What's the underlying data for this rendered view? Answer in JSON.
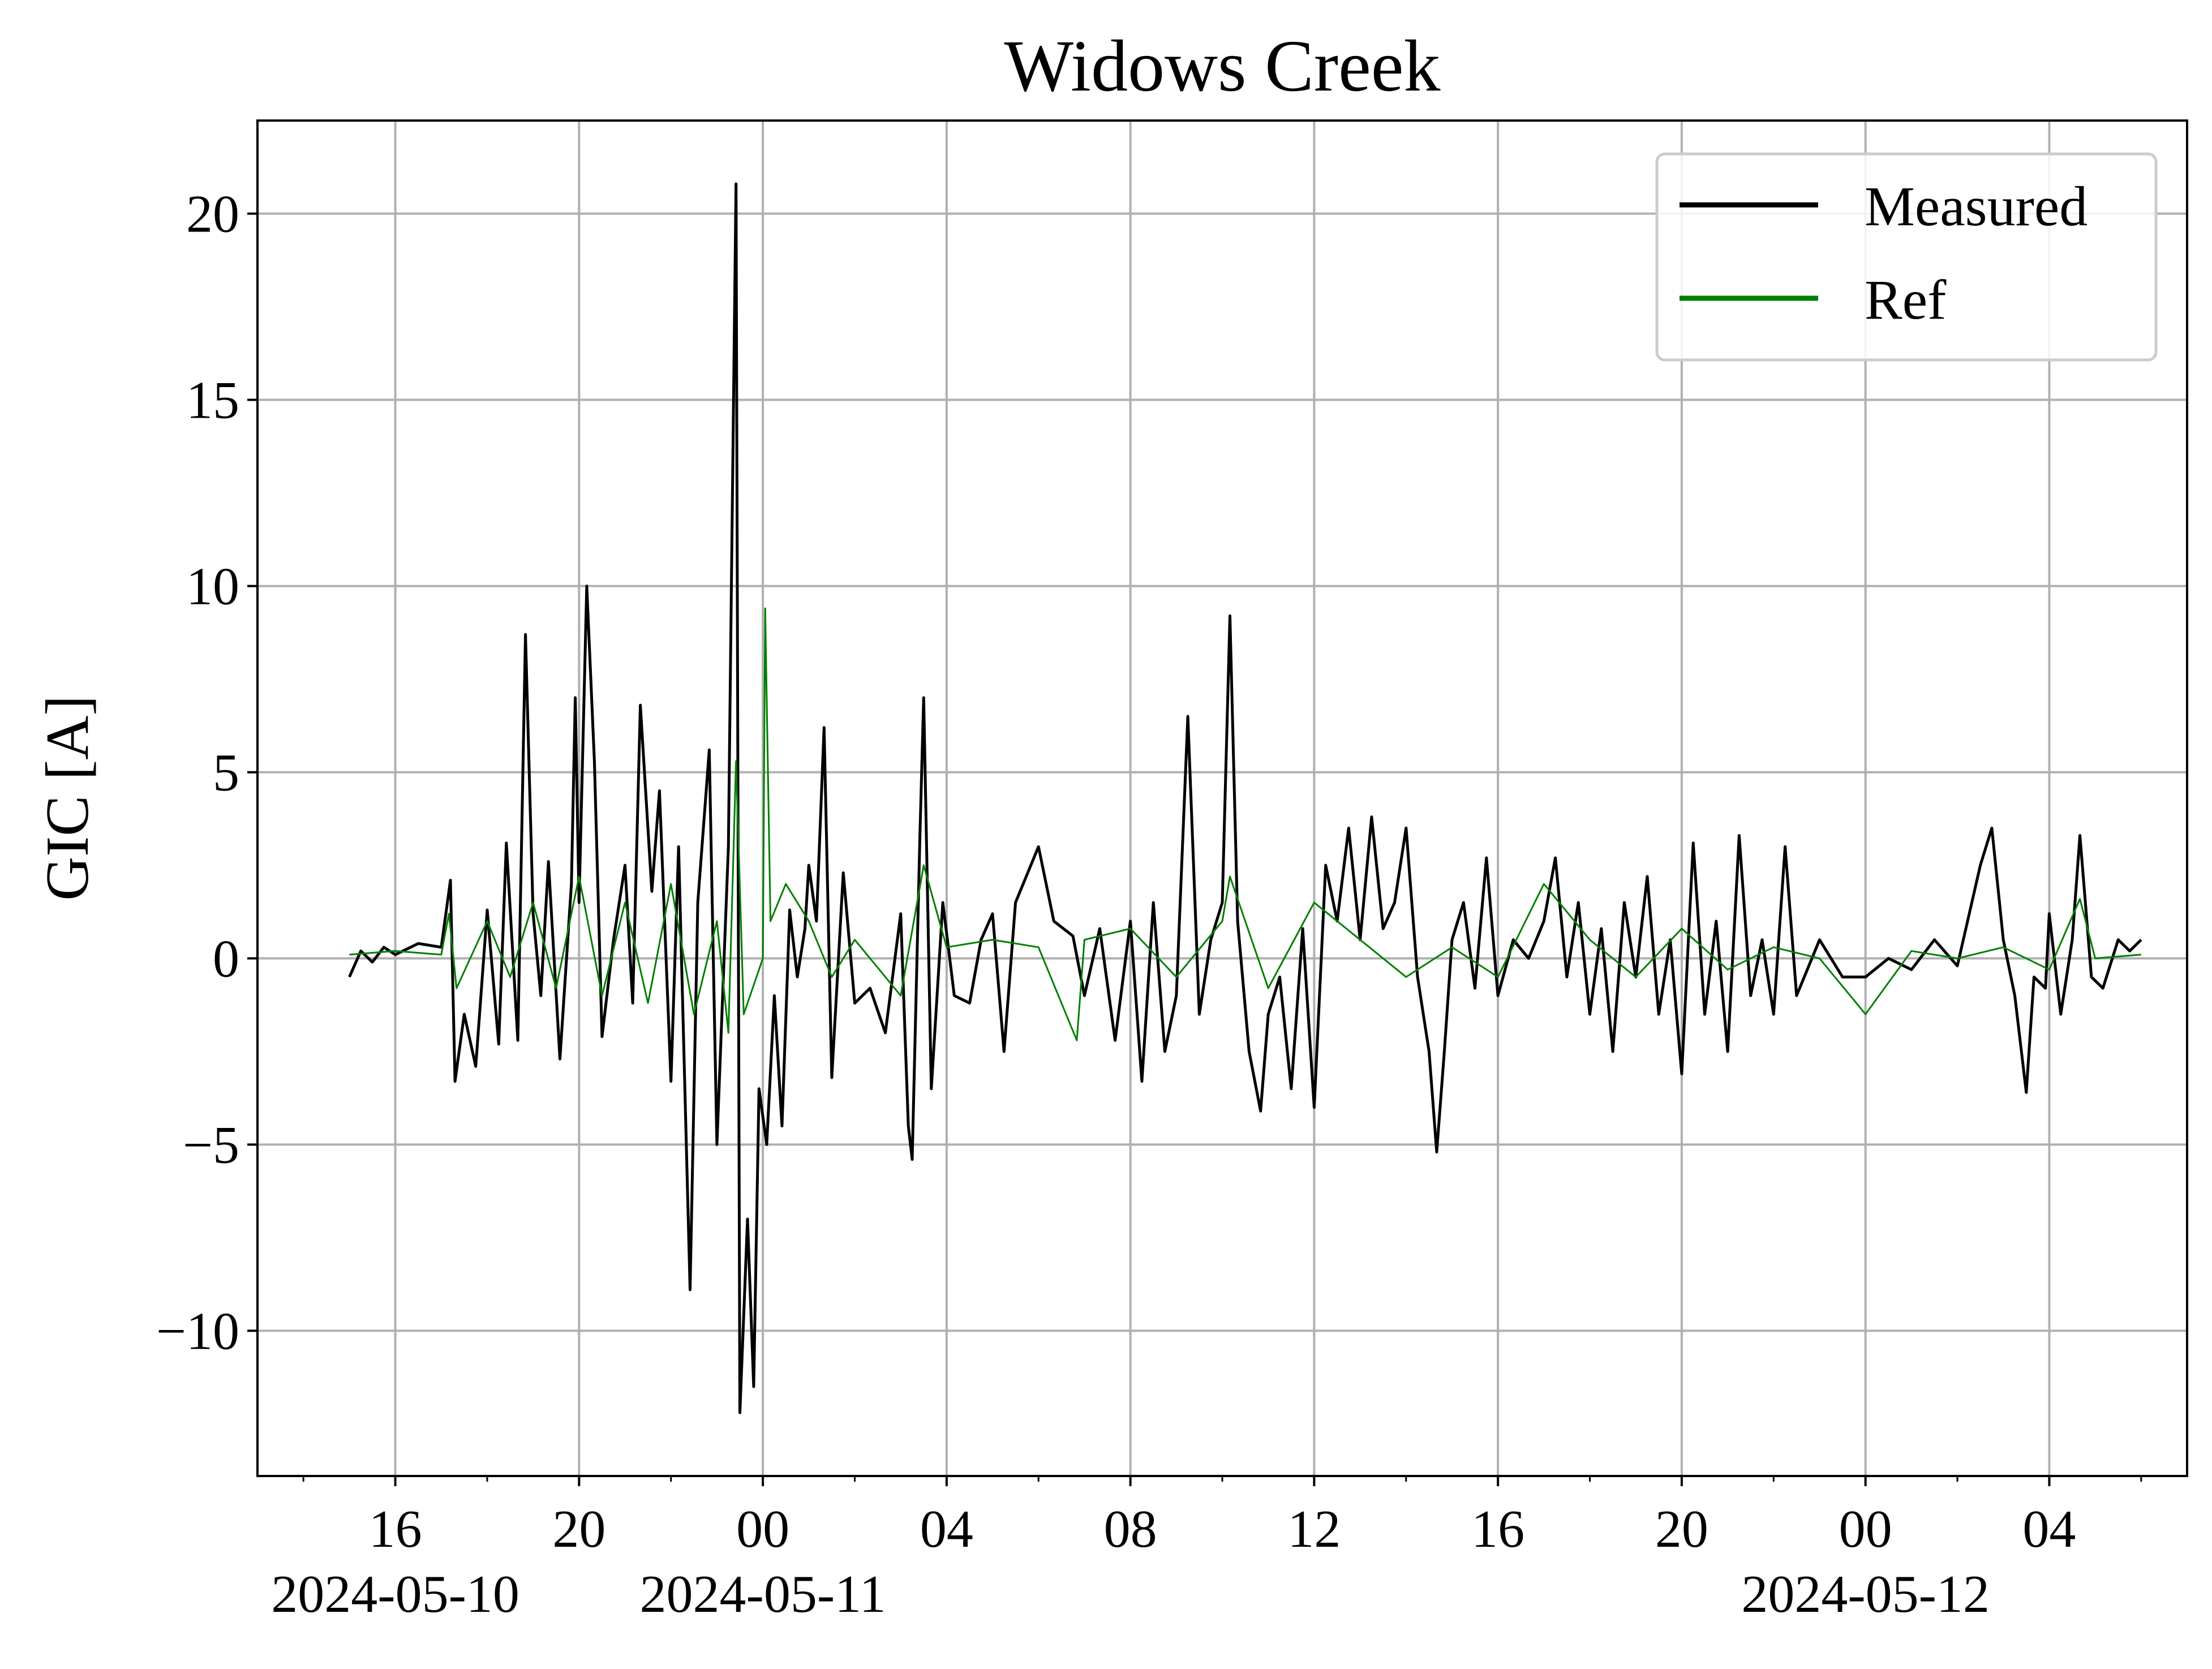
{
  "chart_data": {
    "type": "line",
    "title": "Widows Creek",
    "xlabel": "",
    "ylabel": "GIC [A]",
    "x_start": "2024-05-10 13:00",
    "x_end": "2024-05-12 07:00",
    "xlim": [
      "2024-05-10 13:00",
      "2024-05-12 07:00"
    ],
    "ylim": [
      -13.9,
      22.5
    ],
    "y_ticks": [
      {
        "value": -10,
        "label": "−10"
      },
      {
        "value": -5,
        "label": "−5"
      },
      {
        "value": 0,
        "label": "0"
      },
      {
        "value": 5,
        "label": "5"
      },
      {
        "value": 10,
        "label": "10"
      },
      {
        "value": 15,
        "label": "15"
      },
      {
        "value": 20,
        "label": "20"
      }
    ],
    "x_ticks": [
      {
        "time": "2024-05-10 16:00",
        "label": "16",
        "date_label": "2024-05-10"
      },
      {
        "time": "2024-05-10 20:00",
        "label": "20",
        "date_label": ""
      },
      {
        "time": "2024-05-11 00:00",
        "label": "00",
        "date_label": "2024-05-11"
      },
      {
        "time": "2024-05-11 04:00",
        "label": "04",
        "date_label": ""
      },
      {
        "time": "2024-05-11 08:00",
        "label": "08",
        "date_label": ""
      },
      {
        "time": "2024-05-11 12:00",
        "label": "12",
        "date_label": ""
      },
      {
        "time": "2024-05-11 16:00",
        "label": "16",
        "date_label": ""
      },
      {
        "time": "2024-05-11 20:00",
        "label": "20",
        "date_label": ""
      },
      {
        "time": "2024-05-12 00:00",
        "label": "00",
        "date_label": "2024-05-12"
      },
      {
        "time": "2024-05-12 04:00",
        "label": "04",
        "date_label": ""
      }
    ],
    "minor_tick_interval_hours": 2,
    "grid": true,
    "legend_position": "top-right",
    "series": [
      {
        "name": "Measured",
        "color": "#000000",
        "points": [
          [
            "2024-05-10 15:00",
            -0.5
          ],
          [
            "2024-05-10 15:15",
            0.2
          ],
          [
            "2024-05-10 15:30",
            -0.1
          ],
          [
            "2024-05-10 15:45",
            0.3
          ],
          [
            "2024-05-10 16:00",
            0.1
          ],
          [
            "2024-05-10 16:30",
            0.4
          ],
          [
            "2024-05-10 17:00",
            0.3
          ],
          [
            "2024-05-10 17:12",
            2.1
          ],
          [
            "2024-05-10 17:18",
            -3.3
          ],
          [
            "2024-05-10 17:30",
            -1.5
          ],
          [
            "2024-05-10 17:45",
            -2.9
          ],
          [
            "2024-05-10 18:00",
            1.3
          ],
          [
            "2024-05-10 18:15",
            -2.3
          ],
          [
            "2024-05-10 18:25",
            3.1
          ],
          [
            "2024-05-10 18:40",
            -2.2
          ],
          [
            "2024-05-10 18:50",
            8.7
          ],
          [
            "2024-05-10 19:00",
            1.2
          ],
          [
            "2024-05-10 19:10",
            -1.0
          ],
          [
            "2024-05-10 19:20",
            2.6
          ],
          [
            "2024-05-10 19:35",
            -2.7
          ],
          [
            "2024-05-10 19:50",
            2.0
          ],
          [
            "2024-05-10 19:55",
            7.0
          ],
          [
            "2024-05-10 20:00",
            1.5
          ],
          [
            "2024-05-10 20:10",
            10.0
          ],
          [
            "2024-05-10 20:20",
            5.3
          ],
          [
            "2024-05-10 20:30",
            -2.1
          ],
          [
            "2024-05-10 20:45",
            0.5
          ],
          [
            "2024-05-10 21:00",
            2.5
          ],
          [
            "2024-05-10 21:10",
            -1.2
          ],
          [
            "2024-05-10 21:20",
            6.8
          ],
          [
            "2024-05-10 21:35",
            1.8
          ],
          [
            "2024-05-10 21:45",
            4.5
          ],
          [
            "2024-05-10 22:00",
            -3.3
          ],
          [
            "2024-05-10 22:10",
            3.0
          ],
          [
            "2024-05-10 22:25",
            -8.9
          ],
          [
            "2024-05-10 22:35",
            1.5
          ],
          [
            "2024-05-10 22:50",
            5.6
          ],
          [
            "2024-05-10 23:00",
            -5.0
          ],
          [
            "2024-05-10 23:15",
            3.0
          ],
          [
            "2024-05-10 23:25",
            20.8
          ],
          [
            "2024-05-10 23:30",
            -12.2
          ],
          [
            "2024-05-10 23:40",
            -7.0
          ],
          [
            "2024-05-10 23:48",
            -11.5
          ],
          [
            "2024-05-10 23:55",
            -3.5
          ],
          [
            "2024-05-11 00:05",
            -5.0
          ],
          [
            "2024-05-11 00:15",
            -1.0
          ],
          [
            "2024-05-11 00:25",
            -4.5
          ],
          [
            "2024-05-11 00:35",
            1.3
          ],
          [
            "2024-05-11 00:45",
            -0.5
          ],
          [
            "2024-05-11 00:55",
            0.8
          ],
          [
            "2024-05-11 01:00",
            2.5
          ],
          [
            "2024-05-11 01:10",
            1.0
          ],
          [
            "2024-05-11 01:20",
            6.2
          ],
          [
            "2024-05-11 01:30",
            -3.2
          ],
          [
            "2024-05-11 01:45",
            2.3
          ],
          [
            "2024-05-11 02:00",
            -1.2
          ],
          [
            "2024-05-11 02:20",
            -0.8
          ],
          [
            "2024-05-11 02:40",
            -2.0
          ],
          [
            "2024-05-11 03:00",
            1.2
          ],
          [
            "2024-05-11 03:10",
            -4.5
          ],
          [
            "2024-05-11 03:15",
            -5.4
          ],
          [
            "2024-05-11 03:25",
            3.2
          ],
          [
            "2024-05-11 03:30",
            7.0
          ],
          [
            "2024-05-11 03:40",
            -3.5
          ],
          [
            "2024-05-11 03:55",
            1.5
          ],
          [
            "2024-05-11 04:10",
            -1.0
          ],
          [
            "2024-05-11 04:30",
            -1.2
          ],
          [
            "2024-05-11 04:45",
            0.5
          ],
          [
            "2024-05-11 05:00",
            1.2
          ],
          [
            "2024-05-11 05:15",
            -2.5
          ],
          [
            "2024-05-11 05:30",
            1.5
          ],
          [
            "2024-05-11 06:00",
            3.0
          ],
          [
            "2024-05-11 06:20",
            1.0
          ],
          [
            "2024-05-11 06:45",
            0.6
          ],
          [
            "2024-05-11 07:00",
            -1.0
          ],
          [
            "2024-05-11 07:20",
            0.8
          ],
          [
            "2024-05-11 07:40",
            -2.2
          ],
          [
            "2024-05-11 08:00",
            1.0
          ],
          [
            "2024-05-11 08:15",
            -3.3
          ],
          [
            "2024-05-11 08:30",
            1.5
          ],
          [
            "2024-05-11 08:45",
            -2.5
          ],
          [
            "2024-05-11 09:00",
            -1.0
          ],
          [
            "2024-05-11 09:15",
            6.5
          ],
          [
            "2024-05-11 09:30",
            -1.5
          ],
          [
            "2024-05-11 09:45",
            0.5
          ],
          [
            "2024-05-11 10:00",
            1.5
          ],
          [
            "2024-05-11 10:10",
            9.2
          ],
          [
            "2024-05-11 10:20",
            1.0
          ],
          [
            "2024-05-11 10:35",
            -2.5
          ],
          [
            "2024-05-11 10:50",
            -4.1
          ],
          [
            "2024-05-11 11:00",
            -1.5
          ],
          [
            "2024-05-11 11:15",
            -0.5
          ],
          [
            "2024-05-11 11:30",
            -3.5
          ],
          [
            "2024-05-11 11:45",
            0.8
          ],
          [
            "2024-05-11 12:00",
            -4.0
          ],
          [
            "2024-05-11 12:15",
            2.5
          ],
          [
            "2024-05-11 12:30",
            1.0
          ],
          [
            "2024-05-11 12:45",
            3.5
          ],
          [
            "2024-05-11 13:00",
            0.5
          ],
          [
            "2024-05-11 13:15",
            3.8
          ],
          [
            "2024-05-11 13:30",
            0.8
          ],
          [
            "2024-05-11 13:45",
            1.5
          ],
          [
            "2024-05-11 14:00",
            3.5
          ],
          [
            "2024-05-11 14:15",
            -0.5
          ],
          [
            "2024-05-11 14:30",
            -2.5
          ],
          [
            "2024-05-11 14:40",
            -5.2
          ],
          [
            "2024-05-11 14:50",
            -2.5
          ],
          [
            "2024-05-11 15:00",
            0.5
          ],
          [
            "2024-05-11 15:15",
            1.5
          ],
          [
            "2024-05-11 15:30",
            -0.8
          ],
          [
            "2024-05-11 15:45",
            2.7
          ],
          [
            "2024-05-11 16:00",
            -1.0
          ],
          [
            "2024-05-11 16:20",
            0.5
          ],
          [
            "2024-05-11 16:40",
            0.0
          ],
          [
            "2024-05-11 17:00",
            1.0
          ],
          [
            "2024-05-11 17:15",
            2.7
          ],
          [
            "2024-05-11 17:30",
            -0.5
          ],
          [
            "2024-05-11 17:45",
            1.5
          ],
          [
            "2024-05-11 18:00",
            -1.5
          ],
          [
            "2024-05-11 18:15",
            0.8
          ],
          [
            "2024-05-11 18:30",
            -2.5
          ],
          [
            "2024-05-11 18:45",
            1.5
          ],
          [
            "2024-05-11 19:00",
            -0.5
          ],
          [
            "2024-05-11 19:15",
            2.2
          ],
          [
            "2024-05-11 19:30",
            -1.5
          ],
          [
            "2024-05-11 19:45",
            0.5
          ],
          [
            "2024-05-11 20:00",
            -3.1
          ],
          [
            "2024-05-11 20:15",
            3.1
          ],
          [
            "2024-05-11 20:30",
            -1.5
          ],
          [
            "2024-05-11 20:45",
            1.0
          ],
          [
            "2024-05-11 21:00",
            -2.5
          ],
          [
            "2024-05-11 21:15",
            3.3
          ],
          [
            "2024-05-11 21:30",
            -1.0
          ],
          [
            "2024-05-11 21:45",
            0.5
          ],
          [
            "2024-05-11 22:00",
            -1.5
          ],
          [
            "2024-05-11 22:15",
            3.0
          ],
          [
            "2024-05-11 22:30",
            -1.0
          ],
          [
            "2024-05-11 23:00",
            0.5
          ],
          [
            "2024-05-11 23:30",
            -0.5
          ],
          [
            "2024-05-12 00:00",
            -0.5
          ],
          [
            "2024-05-12 00:30",
            0.0
          ],
          [
            "2024-05-12 01:00",
            -0.3
          ],
          [
            "2024-05-12 01:30",
            0.5
          ],
          [
            "2024-05-12 02:00",
            -0.2
          ],
          [
            "2024-05-12 02:30",
            2.5
          ],
          [
            "2024-05-12 02:45",
            3.5
          ],
          [
            "2024-05-12 03:00",
            0.5
          ],
          [
            "2024-05-12 03:15",
            -1.0
          ],
          [
            "2024-05-12 03:30",
            -3.6
          ],
          [
            "2024-05-12 03:40",
            -0.5
          ],
          [
            "2024-05-12 03:55",
            -0.8
          ],
          [
            "2024-05-12 04:00",
            1.2
          ],
          [
            "2024-05-12 04:15",
            -1.5
          ],
          [
            "2024-05-12 04:30",
            0.5
          ],
          [
            "2024-05-12 04:40",
            3.3
          ],
          [
            "2024-05-12 04:55",
            -0.5
          ],
          [
            "2024-05-12 05:10",
            -0.8
          ],
          [
            "2024-05-12 05:30",
            0.5
          ],
          [
            "2024-05-12 05:45",
            0.2
          ],
          [
            "2024-05-12 06:00",
            0.5
          ]
        ]
      },
      {
        "name": "Ref",
        "color": "#007f00",
        "points": [
          [
            "2024-05-10 15:00",
            0.1
          ],
          [
            "2024-05-10 16:00",
            0.2
          ],
          [
            "2024-05-10 17:00",
            0.1
          ],
          [
            "2024-05-10 17:10",
            1.2
          ],
          [
            "2024-05-10 17:20",
            -0.8
          ],
          [
            "2024-05-10 18:00",
            1.0
          ],
          [
            "2024-05-10 18:30",
            -0.5
          ],
          [
            "2024-05-10 19:00",
            1.5
          ],
          [
            "2024-05-10 19:30",
            -0.8
          ],
          [
            "2024-05-10 20:00",
            2.2
          ],
          [
            "2024-05-10 20:30",
            -1.0
          ],
          [
            "2024-05-10 21:00",
            1.5
          ],
          [
            "2024-05-10 21:30",
            -1.2
          ],
          [
            "2024-05-10 22:00",
            2.0
          ],
          [
            "2024-05-10 22:30",
            -1.5
          ],
          [
            "2024-05-10 23:00",
            1.0
          ],
          [
            "2024-05-10 23:15",
            -2.0
          ],
          [
            "2024-05-10 23:25",
            5.3
          ],
          [
            "2024-05-10 23:35",
            -1.5
          ],
          [
            "2024-05-11 00:00",
            0.0
          ],
          [
            "2024-05-11 00:03",
            9.4
          ],
          [
            "2024-05-11 00:10",
            1.0
          ],
          [
            "2024-05-11 00:30",
            2.0
          ],
          [
            "2024-05-11 01:00",
            1.0
          ],
          [
            "2024-05-11 01:30",
            -0.5
          ],
          [
            "2024-05-11 02:00",
            0.5
          ],
          [
            "2024-05-11 03:00",
            -1.0
          ],
          [
            "2024-05-11 03:30",
            2.5
          ],
          [
            "2024-05-11 04:00",
            0.3
          ],
          [
            "2024-05-11 05:00",
            0.5
          ],
          [
            "2024-05-11 06:00",
            0.3
          ],
          [
            "2024-05-11 06:50",
            -2.2
          ],
          [
            "2024-05-11 07:00",
            0.5
          ],
          [
            "2024-05-11 08:00",
            0.8
          ],
          [
            "2024-05-11 09:00",
            -0.5
          ],
          [
            "2024-05-11 10:00",
            1.0
          ],
          [
            "2024-05-11 10:10",
            2.2
          ],
          [
            "2024-05-11 11:00",
            -0.8
          ],
          [
            "2024-05-11 12:00",
            1.5
          ],
          [
            "2024-05-11 13:00",
            0.5
          ],
          [
            "2024-05-11 14:00",
            -0.5
          ],
          [
            "2024-05-11 15:00",
            0.3
          ],
          [
            "2024-05-11 16:00",
            -0.5
          ],
          [
            "2024-05-11 17:00",
            2.0
          ],
          [
            "2024-05-11 18:00",
            0.5
          ],
          [
            "2024-05-11 19:00",
            -0.5
          ],
          [
            "2024-05-11 20:00",
            0.8
          ],
          [
            "2024-05-11 21:00",
            -0.3
          ],
          [
            "2024-05-11 22:00",
            0.3
          ],
          [
            "2024-05-11 23:00",
            0.0
          ],
          [
            "2024-05-12 00:00",
            -1.5
          ],
          [
            "2024-05-12 01:00",
            0.2
          ],
          [
            "2024-05-12 02:00",
            0.0
          ],
          [
            "2024-05-12 03:00",
            0.3
          ],
          [
            "2024-05-12 04:00",
            -0.3
          ],
          [
            "2024-05-12 04:40",
            1.6
          ],
          [
            "2024-05-12 05:00",
            0.0
          ],
          [
            "2024-05-12 06:00",
            0.1
          ]
        ]
      }
    ]
  }
}
